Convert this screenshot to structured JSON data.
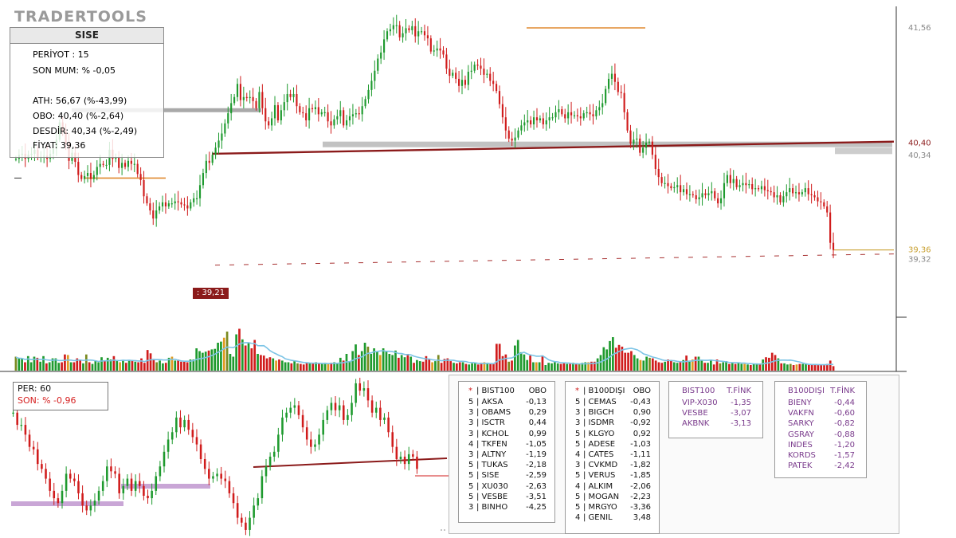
{
  "app": {
    "logo": "TRADERTOOLS"
  },
  "info_box": {
    "symbol": "SISE",
    "lines": [
      {
        "text": "PERİYOT : 15",
        "color": "#111111"
      },
      {
        "text": "SON MUM: % -0,05",
        "color": "#d62020"
      },
      {
        "text": "ATH: 56,67 (%-43,99)",
        "color": "#111111"
      },
      {
        "text": "OBO: 40,40 (%-2,64)",
        "color": "#d62020"
      },
      {
        "text": "DESDİR: 40,34 (%-2,49)",
        "color": "#555555"
      },
      {
        "text": "FİYAT: 39,36",
        "color": "#c8a030"
      }
    ]
  },
  "price_axis": {
    "labels": [
      {
        "text": "41,56",
        "value": 41.56,
        "color": "#888888"
      },
      {
        "text": "40,40",
        "value": 40.4,
        "color": "#8b1a1a"
      },
      {
        "text": "40,34",
        "value": 40.34,
        "color": "#888888"
      },
      {
        "text": "39,36",
        "value": 39.36,
        "color": "#c8a030"
      },
      {
        "text": "39,32",
        "value": 39.32,
        "color": "#888888"
      }
    ]
  },
  "price_tag": {
    "text": ": 39,21",
    "value": 39.21
  },
  "chart_data": [
    {
      "type": "candlestick",
      "name": "main",
      "period": 15,
      "ylim": [
        38.9,
        41.75
      ],
      "close_series": [
        40.26,
        40.3,
        40.31,
        40.26,
        40.3,
        40.31,
        40.35,
        40.27,
        40.28,
        40.29,
        40.26,
        40.31,
        40.36,
        40.45,
        40.62,
        40.53,
        40.41,
        40.24,
        40.32,
        40.23,
        40.1,
        40.06,
        40.09,
        40.12,
        40.06,
        40.1,
        40.18,
        40.21,
        40.2,
        40.2,
        40.35,
        40.26,
        40.27,
        40.17,
        40.22,
        40.18,
        40.24,
        40.21,
        40.21,
        40.11,
        40.05,
        39.89,
        39.82,
        39.75,
        39.67,
        39.75,
        39.79,
        39.83,
        39.79,
        39.82,
        39.82,
        39.84,
        39.83,
        39.81,
        39.8,
        39.77,
        39.83,
        39.87,
        39.87,
        40.0,
        40.12,
        40.24,
        40.22,
        40.3,
        40.37,
        40.44,
        40.51,
        40.61,
        40.71,
        40.81,
        40.87,
        41.0,
        40.84,
        40.87,
        40.86,
        40.87,
        40.83,
        40.76,
        40.92,
        40.76,
        40.63,
        40.59,
        40.66,
        40.79,
        40.64,
        40.74,
        40.82,
        40.9,
        40.87,
        40.9,
        40.78,
        40.72,
        40.71,
        40.64,
        40.76,
        40.75,
        40.77,
        40.7,
        40.72,
        40.72,
        40.63,
        40.59,
        40.65,
        40.68,
        40.74,
        40.59,
        40.64,
        40.68,
        40.7,
        40.71,
        40.7,
        40.78,
        40.85,
        40.94,
        41.03,
        41.13,
        41.25,
        41.31,
        41.44,
        41.52,
        41.54,
        41.58,
        41.58,
        41.46,
        41.5,
        41.55,
        41.53,
        41.57,
        41.47,
        41.52,
        41.52,
        41.48,
        41.45,
        41.32,
        41.33,
        41.35,
        41.33,
        41.29,
        41.15,
        41.08,
        41.11,
        41.05,
        40.98,
        41.04,
        40.99,
        41.12,
        41.13,
        41.19,
        41.18,
        41.15,
        41.09,
        41.1,
        41.03,
        41.0,
        40.93,
        40.8,
        40.67,
        40.54,
        40.46,
        40.44,
        40.47,
        40.54,
        40.59,
        40.62,
        40.64,
        40.6,
        40.67,
        40.64,
        40.66,
        40.6,
        40.64,
        40.67,
        40.67,
        40.72,
        40.75,
        40.7,
        40.66,
        40.72,
        40.69,
        40.69,
        40.68,
        40.66,
        40.71,
        40.72,
        40.7,
        40.68,
        40.74,
        40.77,
        40.81,
        40.95,
        41.05,
        41.1,
        41.02,
        40.92,
        40.91,
        40.72,
        40.54,
        40.41,
        40.45,
        40.46,
        40.32,
        40.37,
        40.42,
        40.43,
        40.3,
        40.16,
        40.08,
        40.02,
        40.02,
        39.99,
        39.97,
        39.98,
        40.0,
        39.93,
        39.96,
        39.91,
        39.91,
        39.9,
        39.86,
        39.88,
        39.92,
        39.9,
        39.92,
        39.94,
        39.87,
        39.82,
        39.87,
        40.02,
        40.1,
        40.02,
        40.06,
        39.98,
        40.0,
        40.02,
        40.0,
        40.01,
        39.96,
        39.97,
        39.96,
        39.99,
        39.95,
        39.94,
        39.93,
        39.88,
        39.9,
        39.83,
        39.89,
        39.93,
        39.97,
        39.92,
        39.93,
        39.91,
        39.93,
        39.97,
        39.91,
        39.9,
        39.88,
        39.84,
        39.83,
        39.79,
        39.73,
        39.43,
        39.36
      ]
    },
    {
      "type": "bar",
      "name": "volume",
      "values": [
        0.25,
        0.22,
        0.22,
        0.15,
        0.26,
        0.15,
        0.25,
        0.23,
        0.16,
        0.26,
        0.13,
        0.15,
        0.22,
        0.22,
        0.14,
        0.15,
        0.29,
        0.28,
        0.15,
        0.15,
        0.22,
        0.19,
        0.13,
        0.29,
        0.15,
        0.12,
        0.18,
        0.15,
        0.24,
        0.18,
        0.23,
        0.2,
        0.26,
        0.19,
        0.15,
        0.18,
        0.14,
        0.19,
        0.19,
        0.16,
        0.15,
        0.22,
        0.14,
        0.37,
        0.31,
        0.21,
        0.15,
        0.18,
        0.13,
        0.14,
        0.23,
        0.25,
        0.18,
        0.2,
        0.16,
        0.16,
        0.15,
        0.2,
        0.2,
        0.4,
        0.35,
        0.32,
        0.34,
        0.36,
        0.38,
        0.39,
        0.5,
        0.52,
        0.59,
        0.7,
        0.3,
        0.25,
        0.65,
        0.75,
        0.56,
        0.45,
        0.5,
        0.4,
        0.55,
        0.3,
        0.28,
        0.27,
        0.22,
        0.24,
        0.22,
        0.18,
        0.2,
        0.18,
        0.15,
        0.15,
        0.13,
        0.18,
        0.13,
        0.12,
        0.11,
        0.15,
        0.14,
        0.14,
        0.15,
        0.13,
        0.12,
        0.14,
        0.13,
        0.14,
        0.15,
        0.13,
        0.23,
        0.18,
        0.3,
        0.17,
        0.35,
        0.47,
        0.28,
        0.35,
        0.5,
        0.43,
        0.3,
        0.4,
        0.35,
        0.28,
        0.4,
        0.34,
        0.3,
        0.28,
        0.36,
        0.23,
        0.28,
        0.24,
        0.3,
        0.25,
        0.14,
        0.19,
        0.17,
        0.16,
        0.26,
        0.2,
        0.15,
        0.17,
        0.28,
        0.14,
        0.21,
        0.22,
        0.17,
        0.14,
        0.13,
        0.15,
        0.15,
        0.12,
        0.11,
        0.13,
        0.15,
        0.11,
        0.14,
        0.15,
        0.14,
        0.13,
        0.12,
        0.48,
        0.48,
        0.26,
        0.29,
        0.16,
        0.18,
        0.45,
        0.55,
        0.33,
        0.29,
        0.19,
        0.27,
        0.15,
        0.15,
        0.15,
        0.27,
        0.1,
        0.14,
        0.13,
        0.15,
        0.13,
        0.12,
        0.13,
        0.12,
        0.12,
        0.14,
        0.12,
        0.12,
        0.14,
        0.15,
        0.15,
        0.16,
        0.16,
        0.22,
        0.28,
        0.42,
        0.38,
        0.53,
        0.6,
        0.41,
        0.46,
        0.43,
        0.32,
        0.32,
        0.35,
        0.28,
        0.22,
        0.19,
        0.18,
        0.25,
        0.23,
        0.22,
        0.18,
        0.15,
        0.14,
        0.16,
        0.2,
        0.19,
        0.15,
        0.14,
        0.15,
        0.19,
        0.27,
        0.18,
        0.2,
        0.25,
        0.25,
        0.18,
        0.14,
        0.14,
        0.2,
        0.11,
        0.2,
        0.13,
        0.15,
        0.17,
        0.12,
        0.15,
        0.12,
        0.15,
        0.12,
        0.12,
        0.11,
        0.1,
        0.12,
        0.13,
        0.11,
        0.2,
        0.24,
        0.23,
        0.32,
        0.28,
        0.22,
        0.13,
        0.13,
        0.11,
        0.12,
        0.1,
        0.11,
        0.12,
        0.12,
        0.13,
        0.11,
        0.11,
        0.12,
        0.1,
        0.1,
        0.1,
        0.12,
        0.18,
        0.08
      ]
    },
    {
      "type": "candlestick",
      "name": "mini",
      "period": 60,
      "ylim": [
        38.9,
        41.9
      ],
      "close_series": [
        41.35,
        41.1,
        41.1,
        40.9,
        40.65,
        40.6,
        40.3,
        40.2,
        40.0,
        39.75,
        39.6,
        39.5,
        39.75,
        40.1,
        40.0,
        39.95,
        39.7,
        39.45,
        39.35,
        39.45,
        39.55,
        39.75,
        39.95,
        40.25,
        40.15,
        40.1,
        39.7,
        39.85,
        40.0,
        39.75,
        39.95,
        39.85,
        39.65,
        39.6,
        39.75,
        40.05,
        40.25,
        40.55,
        40.8,
        40.95,
        41.25,
        41.05,
        41.2,
        41.0,
        40.85,
        40.7,
        40.4,
        40.2,
        40.0,
        40.05,
        40.1,
        40.0,
        39.95,
        39.7,
        39.5,
        39.2,
        39.1,
        38.95,
        39.2,
        39.45,
        39.6,
        40.05,
        40.25,
        40.45,
        40.55,
        40.9,
        41.25,
        41.35,
        41.45,
        41.5,
        41.3,
        41.05,
        40.8,
        40.65,
        40.7,
        40.9,
        41.2,
        41.4,
        41.55,
        41.4,
        41.5,
        41.2,
        41.3,
        41.55,
        41.95,
        41.8,
        41.85,
        41.6,
        41.35,
        41.45,
        41.2,
        41.25,
        40.95,
        40.65,
        40.4,
        40.45,
        40.3,
        40.5,
        40.45,
        40.2
      ]
    }
  ],
  "mini_box": {
    "per": "PER: 60",
    "son": "SON: % -0,96"
  },
  "tables": [
    {
      "id": "bist100",
      "header": [
        "*",
        "| BIST100",
        "OBO"
      ],
      "rows": [
        [
          "5",
          "| AKSA",
          "-0,13"
        ],
        [
          "3",
          "| OBAMS",
          "0,29"
        ],
        [
          "3",
          "| ISCTR",
          "0,44"
        ],
        [
          "3",
          "| KCHOL",
          "0,99"
        ],
        [
          "4",
          "| TKFEN",
          "-1,05"
        ],
        [
          "3",
          "| ALTNY",
          "-1,19"
        ],
        [
          "5",
          "| TUKAS",
          "-2,18"
        ],
        [
          "5",
          "| SISE",
          "-2,59"
        ],
        [
          "5",
          "| XU030",
          "-2,63"
        ],
        [
          "5",
          "| VESBE",
          "-3,51"
        ],
        [
          "3",
          "| BINHO",
          "-4,25"
        ]
      ]
    },
    {
      "id": "b100disi",
      "header": [
        "*",
        "| B100DIŞI",
        "OBO"
      ],
      "rows": [
        [
          "5",
          "| CEMAS",
          "-0,43"
        ],
        [
          "3",
          "| BIGCH",
          "0,90"
        ],
        [
          "3",
          "| ISDMR",
          "-0,92"
        ],
        [
          "5",
          "| KLGYO",
          "0,92"
        ],
        [
          "5",
          "| ADESE",
          "-1,03"
        ],
        [
          "4",
          "| CATES",
          "-1,11"
        ],
        [
          "3",
          "| CVKMD",
          "-1,82"
        ],
        [
          "5",
          "| VERUS",
          "-1,85"
        ],
        [
          "4",
          "| ALKIM",
          "-2,06"
        ],
        [
          "5",
          "| MOGAN",
          "-2,23"
        ],
        [
          "5",
          "| MRGYO",
          "-3,36"
        ],
        [
          "4",
          "| GENIL",
          "3,48"
        ]
      ]
    },
    {
      "id": "bist100_tfink",
      "header": [
        "BIST100",
        "T.FİNK"
      ],
      "rows": [
        [
          "VIP-X030",
          "-1,35"
        ],
        [
          "VESBE",
          "-3,07"
        ],
        [
          "AKBNK",
          "-3,13"
        ]
      ]
    },
    {
      "id": "b100disi_tfink",
      "header": [
        "B100DIŞI",
        "T.FİNK"
      ],
      "rows": [
        [
          "BIENY",
          "-0,44"
        ],
        [
          "VAKFN",
          "-0,60"
        ],
        [
          "SARKY",
          "-0,82"
        ],
        [
          "GSRAY",
          "-0,88"
        ],
        [
          "INDES",
          "-1,20"
        ],
        [
          "KORDS",
          "-1,57"
        ],
        [
          "PATEK",
          "-2,42"
        ]
      ]
    }
  ],
  "colors": {
    "up": "#1e9a2e",
    "down": "#d01c1c",
    "volume_ma": "#7cc4e6",
    "support_line": "#8b1a1a",
    "orange_level": "#e08a30",
    "gold_level": "#c8a030",
    "purple_text": "#7a3b8c",
    "purple_band": "#c9a6d6"
  }
}
